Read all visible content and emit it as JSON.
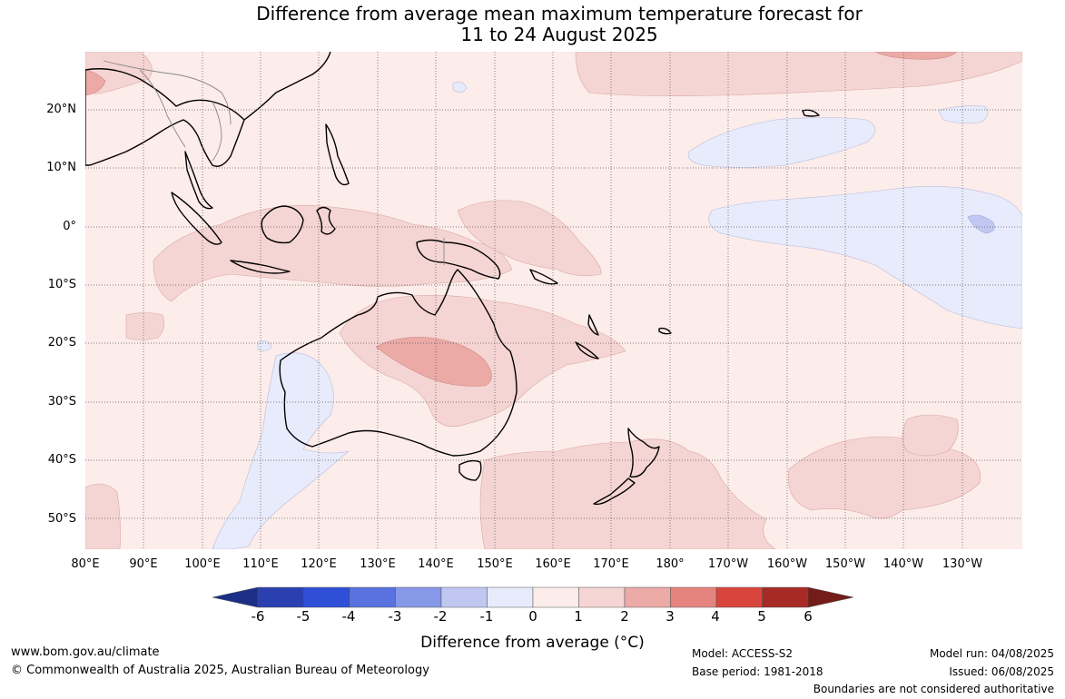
{
  "title": {
    "line1": "Difference from average mean maximum temperature forecast for",
    "line2": "11 to 24 August 2025"
  },
  "map": {
    "y_axis_labels": [
      "20°N",
      "10°N",
      "0°",
      "10°S",
      "20°S",
      "30°S",
      "40°S",
      "50°S"
    ],
    "x_axis_labels": [
      "80°E",
      "90°E",
      "100°E",
      "110°E",
      "120°E",
      "130°E",
      "140°E",
      "150°E",
      "160°E",
      "170°E",
      "180°",
      "170°W",
      "160°W",
      "150°W",
      "140°W",
      "130°W"
    ]
  },
  "legend": {
    "tick_labels": [
      "-6",
      "-5",
      "-4",
      "-3",
      "-2",
      "-1",
      "0",
      "1",
      "2",
      "3",
      "4",
      "5",
      "6"
    ],
    "colors": [
      "#1c2f87",
      "#2a3fb0",
      "#2f4fd6",
      "#5a72e0",
      "#8698e8",
      "#c0c8f2",
      "#e8ebfb",
      "#fcecea",
      "#f5d5d3",
      "#ebaaa6",
      "#e5847e",
      "#d9453c",
      "#a82a24",
      "#741d18"
    ],
    "title": "Difference from average (°C)"
  },
  "footer": {
    "url": "www.bom.gov.au/climate",
    "copyright": "© Commonwealth of Australia 2025, Australian Bureau of Meteorology",
    "model": "Model: ACCESS-S2",
    "base_period": "Base period: 1981-2018",
    "model_run": "Model run: 04/08/2025",
    "issued": "Issued: 06/08/2025",
    "disclaimer": "Boundaries are not considered authoritative"
  }
}
